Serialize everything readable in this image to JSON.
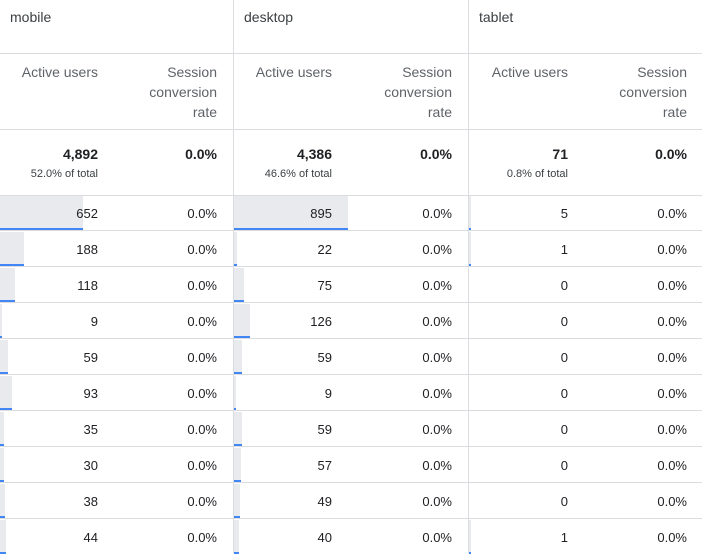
{
  "table": {
    "max_active_users": 895,
    "groups": [
      {
        "name": "mobile",
        "active_users_header": "Active users",
        "conversion_header": "Session conversion rate",
        "total_users": "4,892",
        "total_pct": "52.0% of total",
        "total_conversion": "0.0%",
        "rows": [
          {
            "users": 652,
            "users_label": "652",
            "conv": "0.0%"
          },
          {
            "users": 188,
            "users_label": "188",
            "conv": "0.0%"
          },
          {
            "users": 118,
            "users_label": "118",
            "conv": "0.0%"
          },
          {
            "users": 9,
            "users_label": "9",
            "conv": "0.0%"
          },
          {
            "users": 59,
            "users_label": "59",
            "conv": "0.0%"
          },
          {
            "users": 93,
            "users_label": "93",
            "conv": "0.0%"
          },
          {
            "users": 35,
            "users_label": "35",
            "conv": "0.0%"
          },
          {
            "users": 30,
            "users_label": "30",
            "conv": "0.0%"
          },
          {
            "users": 38,
            "users_label": "38",
            "conv": "0.0%"
          },
          {
            "users": 44,
            "users_label": "44",
            "conv": "0.0%"
          }
        ]
      },
      {
        "name": "desktop",
        "active_users_header": "Active users",
        "conversion_header": "Session conversion rate",
        "total_users": "4,386",
        "total_pct": "46.6% of total",
        "total_conversion": "0.0%",
        "rows": [
          {
            "users": 895,
            "users_label": "895",
            "conv": "0.0%"
          },
          {
            "users": 22,
            "users_label": "22",
            "conv": "0.0%"
          },
          {
            "users": 75,
            "users_label": "75",
            "conv": "0.0%"
          },
          {
            "users": 126,
            "users_label": "126",
            "conv": "0.0%"
          },
          {
            "users": 59,
            "users_label": "59",
            "conv": "0.0%"
          },
          {
            "users": 9,
            "users_label": "9",
            "conv": "0.0%"
          },
          {
            "users": 59,
            "users_label": "59",
            "conv": "0.0%"
          },
          {
            "users": 57,
            "users_label": "57",
            "conv": "0.0%"
          },
          {
            "users": 49,
            "users_label": "49",
            "conv": "0.0%"
          },
          {
            "users": 40,
            "users_label": "40",
            "conv": "0.0%"
          }
        ]
      },
      {
        "name": "tablet",
        "active_users_header": "Active users",
        "conversion_header": "Session conversion rate",
        "total_users": "71",
        "total_pct": "0.8% of total",
        "total_conversion": "0.0%",
        "rows": [
          {
            "users": 5,
            "users_label": "5",
            "conv": "0.0%"
          },
          {
            "users": 1,
            "users_label": "1",
            "conv": "0.0%"
          },
          {
            "users": 0,
            "users_label": "0",
            "conv": "0.0%"
          },
          {
            "users": 0,
            "users_label": "0",
            "conv": "0.0%"
          },
          {
            "users": 0,
            "users_label": "0",
            "conv": "0.0%"
          },
          {
            "users": 0,
            "users_label": "0",
            "conv": "0.0%"
          },
          {
            "users": 0,
            "users_label": "0",
            "conv": "0.0%"
          },
          {
            "users": 0,
            "users_label": "0",
            "conv": "0.0%"
          },
          {
            "users": 0,
            "users_label": "0",
            "conv": "0.0%"
          },
          {
            "users": 1,
            "users_label": "1",
            "conv": "0.0%"
          }
        ]
      }
    ]
  },
  "colors": {
    "bar_fill": "#e8eaed",
    "bar_accent": "#4285f4",
    "grid_line": "#dadce0"
  }
}
